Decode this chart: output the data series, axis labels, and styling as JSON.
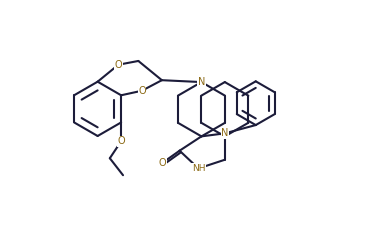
{
  "background_color": "#ffffff",
  "line_color": "#1c1c3a",
  "heteroatom_color": "#8B6914",
  "bond_width": 1.5,
  "figsize": [
    3.8,
    2.29
  ],
  "dpi": 100,
  "xlim": [
    0,
    10
  ],
  "ylim": [
    0,
    6
  ]
}
